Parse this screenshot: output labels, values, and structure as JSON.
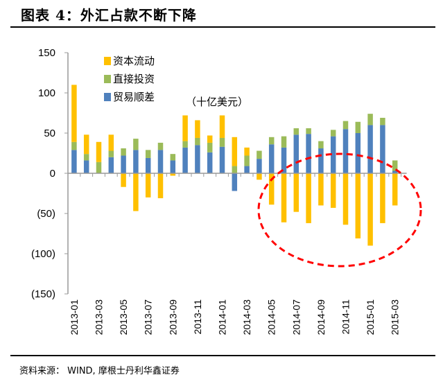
{
  "title": "图表 4：外汇占款不断下降",
  "source": "资料来源：   WIND, 摩根士丹利华鑫证券",
  "chart_data": {
    "type": "bar",
    "stacked": true,
    "unit_label": "（十亿美元）",
    "categories": [
      "2013-01",
      "2013-02",
      "2013-03",
      "2013-04",
      "2013-05",
      "2013-06",
      "2013-07",
      "2013-08",
      "2013-09",
      "2013-10",
      "2013-11",
      "2013-12",
      "2014-01",
      "2014-02",
      "2014-03",
      "2014-04",
      "2014-05",
      "2014-06",
      "2014-07",
      "2014-08",
      "2014-09",
      "2014-10",
      "2014-11",
      "2014-12",
      "2015-01",
      "2015-02",
      "2015-03"
    ],
    "tick_labels": [
      "2013-01",
      "2013-03",
      "2013-05",
      "2013-07",
      "2013-09",
      "2013-11",
      "2014-01",
      "2014-03",
      "2014-05",
      "2014-07",
      "2014-09",
      "2014-11",
      "2015-01",
      "2015-03"
    ],
    "series": [
      {
        "name": "资本流动",
        "color": "#FFC000",
        "values": [
          71,
          24,
          25,
          20,
          -17,
          -47,
          -30,
          -31,
          -3,
          32,
          22,
          9,
          28,
          36,
          10,
          -8,
          -39,
          -61,
          -48,
          -62,
          -40,
          -43,
          -64,
          -81,
          -90,
          -62,
          -40
        ]
      },
      {
        "name": "直接投资",
        "color": "#9BBB59",
        "values": [
          10,
          8,
          14,
          8,
          9,
          14,
          10,
          9,
          8,
          8,
          9,
          12,
          11,
          9,
          13,
          10,
          9,
          14,
          8,
          7,
          9,
          8,
          10,
          14,
          14,
          9,
          13
        ]
      },
      {
        "name": "贸易顺差",
        "color": "#4F81BD",
        "values": [
          29,
          16,
          0,
          20,
          22,
          29,
          19,
          29,
          16,
          32,
          35,
          26,
          33,
          -22,
          9,
          18,
          36,
          32,
          48,
          49,
          31,
          46,
          55,
          50,
          60,
          60,
          3
        ]
      }
    ],
    "legend_order": [
      "资本流动",
      "直接投资",
      "贸易顺差"
    ],
    "ylim": [
      -150,
      150
    ],
    "yticks": [
      150,
      100,
      50,
      0,
      -50,
      -100,
      -150
    ],
    "ytick_labels": [
      "150",
      "100",
      "50",
      "0",
      "(50)",
      "(100)",
      "(150)"
    ],
    "legend_position": "top-left",
    "annotation": "red dashed ellipse highlighting 2014-05 to 2015-03 negative capital flows",
    "annotation_color": "#FF0000",
    "grid": false
  }
}
